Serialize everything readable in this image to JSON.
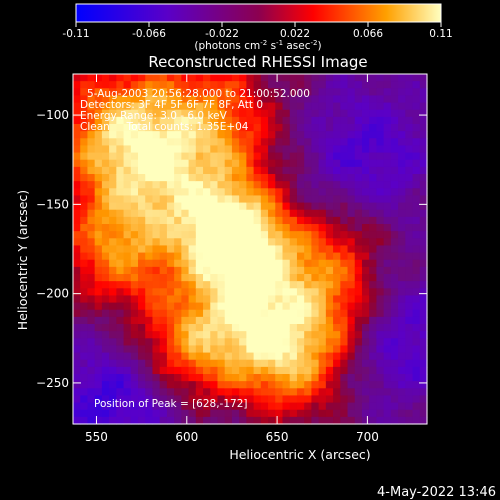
{
  "chart_data": {
    "type": "heatmap",
    "title": "Reconstructed RHESSI Image",
    "xlabel": "Heliocentric X (arcsec)",
    "ylabel": "Heliocentric Y (arcsec)",
    "xlim": [
      537,
      733
    ],
    "ylim": [
      -273,
      -77
    ],
    "xticks": [
      550,
      600,
      650,
      700
    ],
    "yticks": [
      -100,
      -150,
      -200,
      -250
    ],
    "colorbar": {
      "range": [
        -0.11,
        0.11
      ],
      "ticks": [
        "-0.11",
        "-0.066",
        "-0.022",
        "0.022",
        "0.066",
        "0.11"
      ],
      "unit_prefix": "(photons cm",
      "unit_exp1": "-2",
      "unit_mid": " s",
      "unit_exp2": "-1",
      "unit_mid2": " asec",
      "unit_exp3": "-2",
      "unit_suffix": ")"
    },
    "annotations": [
      "5-Aug-2003 20:56:28.000 to 21:00:52.000",
      "Detectors: 3F 4F 5F 6F 7F 8F, Att 0",
      "Energy Range: 3.0 - 6.0 keV",
      "Clean     Total counts: 1.35E+04"
    ],
    "peak_label": "Position of Peak = [628,-172]",
    "peak": [
      628,
      -172
    ],
    "sources": [
      {
        "x": 626,
        "y": -168,
        "amp": 1.0,
        "sigma": 20
      },
      {
        "x": 640,
        "y": -210,
        "amp": 0.75,
        "sigma": 26
      },
      {
        "x": 600,
        "y": -230,
        "amp": 0.55,
        "sigma": 22
      },
      {
        "x": 660,
        "y": -240,
        "amp": 0.55,
        "sigma": 22
      },
      {
        "x": 580,
        "y": -140,
        "amp": 0.6,
        "sigma": 30
      },
      {
        "x": 615,
        "y": -105,
        "amp": 0.55,
        "sigma": 28
      },
      {
        "x": 560,
        "y": -105,
        "amp": 0.55,
        "sigma": 26
      },
      {
        "x": 560,
        "y": -180,
        "amp": 0.45,
        "sigma": 22
      },
      {
        "x": 680,
        "y": -180,
        "amp": 0.45,
        "sigma": 22
      },
      {
        "x": 690,
        "y": -215,
        "amp": 0.3,
        "sigma": 18
      },
      {
        "x": 700,
        "y": -120,
        "amp": -0.35,
        "sigma": 28
      },
      {
        "x": 715,
        "y": -225,
        "amp": -0.4,
        "sigma": 25
      },
      {
        "x": 560,
        "y": -260,
        "amp": -0.45,
        "sigma": 25
      }
    ]
  },
  "footer": {
    "timestamp": "4-May-2022 13:46"
  }
}
